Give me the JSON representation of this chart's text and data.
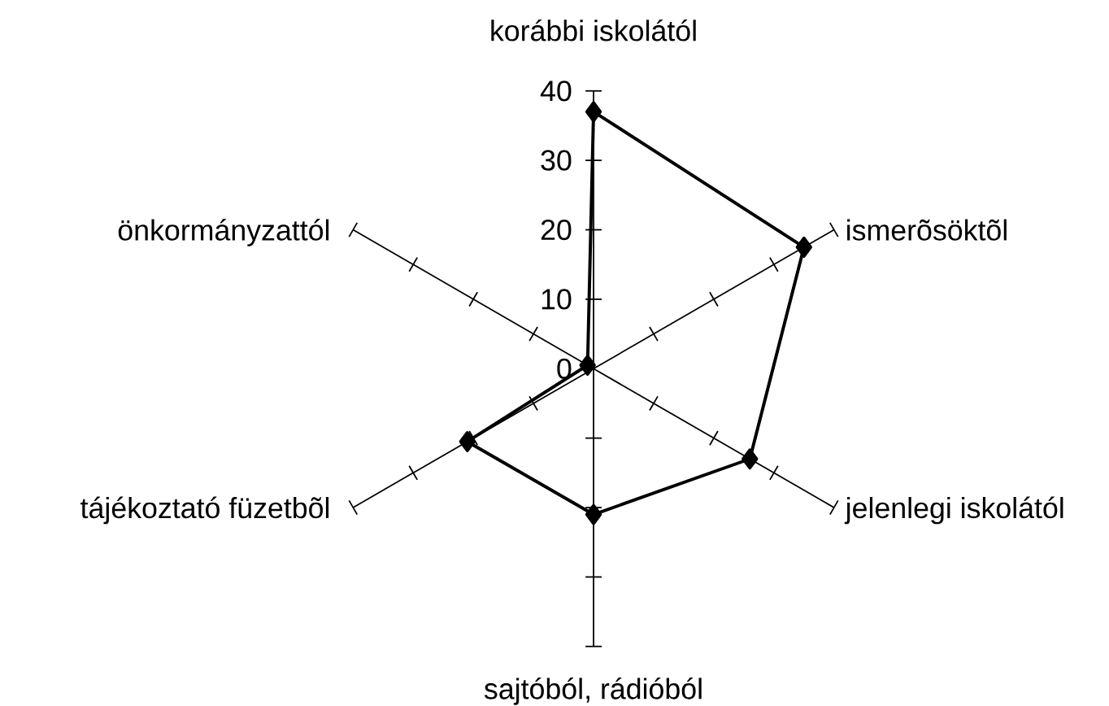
{
  "chart_data": {
    "type": "radar",
    "categories": [
      "korábbi iskolától",
      "ismerõsöktõl",
      "jelenlegi iskolától",
      "sajtóból, rádióból",
      "tájékoztató füzetbõl",
      "önkormányzattól"
    ],
    "series": [
      {
        "color": "#000000",
        "values": [
          37,
          35,
          26,
          21,
          21,
          1
        ]
      }
    ],
    "ylim": [
      0,
      40
    ],
    "yticks": [
      0,
      10,
      20,
      30,
      40
    ],
    "marker": "diamond",
    "line_style": "solid"
  }
}
